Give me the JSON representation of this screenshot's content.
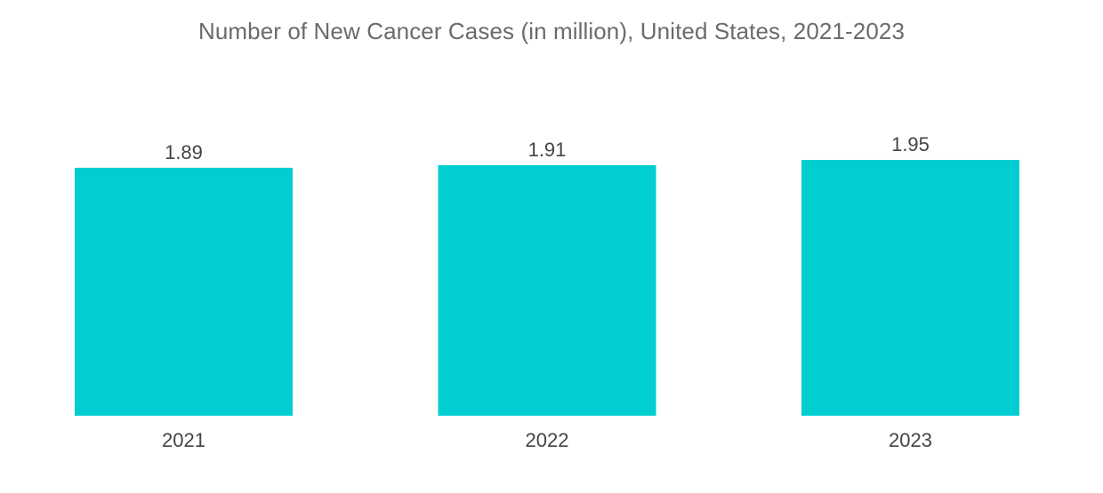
{
  "chart_data": {
    "type": "bar",
    "title": "Number of New Cancer Cases (in million), United States, 2021-2023",
    "categories": [
      "2021",
      "2022",
      "2023"
    ],
    "values": [
      1.89,
      1.91,
      1.95
    ],
    "value_labels": [
      "1.89",
      "1.91",
      "1.95"
    ],
    "xlabel": "",
    "ylabel": "",
    "ylim": [
      0,
      1.95
    ],
    "grid": false,
    "legend": "none",
    "bar_color": "#00CED1"
  }
}
